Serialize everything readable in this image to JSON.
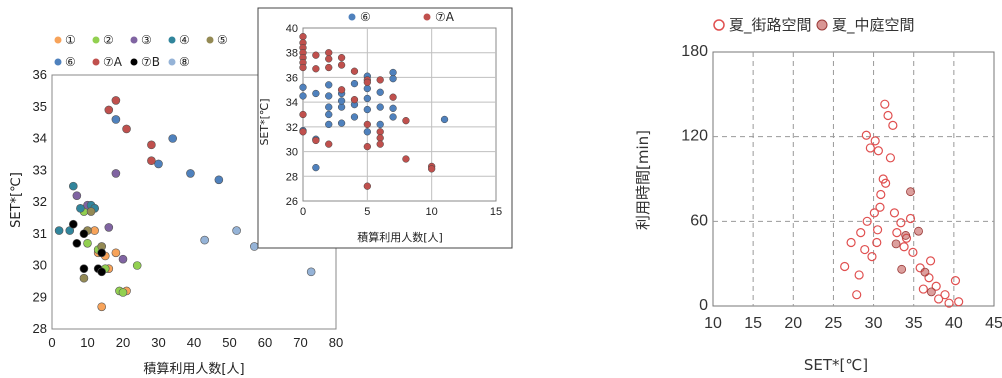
{
  "chart_data": [
    {
      "id": "left",
      "type": "scatter",
      "xlabel": "積算利用人数[人]",
      "ylabel": "SET*[℃]",
      "xlim": [
        0,
        80
      ],
      "ylim": [
        28,
        36
      ],
      "xticks": [
        0,
        10,
        20,
        30,
        40,
        50,
        60,
        70,
        80
      ],
      "yticks": [
        28,
        29,
        30,
        31,
        32,
        33,
        34,
        35,
        36
      ],
      "grid": false,
      "legend": "top-left",
      "series": [
        {
          "name": "①",
          "color": "#f7a35a",
          "points": [
            [
              13,
              30.4
            ],
            [
              15,
              30.3
            ],
            [
              18,
              30.4
            ],
            [
              21,
              29.2
            ],
            [
              14,
              28.7
            ],
            [
              16,
              29.9
            ],
            [
              12,
              31.1
            ]
          ]
        },
        {
          "name": "②",
          "color": "#92d050",
          "points": [
            [
              10,
              30.7
            ],
            [
              15,
              29.9
            ],
            [
              19,
              29.2
            ],
            [
              20,
              29.15
            ],
            [
              24,
              30.0
            ],
            [
              9,
              31.7
            ],
            [
              13,
              30.5
            ]
          ]
        },
        {
          "name": "③",
          "color": "#8064a2",
          "points": [
            [
              7,
              32.2
            ],
            [
              10,
              31.9
            ],
            [
              12,
              31.8
            ],
            [
              16,
              31.2
            ],
            [
              18,
              32.9
            ],
            [
              20,
              30.2
            ]
          ]
        },
        {
          "name": "④",
          "color": "#31859c",
          "points": [
            [
              6,
              32.5
            ],
            [
              8,
              31.8
            ],
            [
              11,
              31.9
            ],
            [
              12,
              31.8
            ],
            [
              5,
              31.1
            ],
            [
              2,
              31.1
            ]
          ]
        },
        {
          "name": "⑤",
          "color": "#948a54",
          "points": [
            [
              10,
              31.1
            ],
            [
              14,
              30.6
            ],
            [
              9,
              29.6
            ],
            [
              11,
              31.7
            ]
          ]
        },
        {
          "name": "⑥",
          "color": "#4f81bd",
          "points": [
            [
              18,
              34.6
            ],
            [
              30,
              33.2
            ],
            [
              34,
              34.0
            ],
            [
              39,
              32.9
            ],
            [
              47,
              32.7
            ]
          ]
        },
        {
          "name": "⑦A",
          "color": "#c0504d",
          "points": [
            [
              16,
              34.9
            ],
            [
              18,
              35.2
            ],
            [
              21,
              34.3
            ],
            [
              28,
              33.8
            ],
            [
              28,
              33.3
            ]
          ]
        },
        {
          "name": "⑦B",
          "color": "#000000",
          "points": [
            [
              6,
              31.3
            ],
            [
              7,
              30.7
            ],
            [
              9,
              29.9
            ],
            [
              9,
              31.0
            ],
            [
              13,
              29.9
            ],
            [
              14,
              30.4
            ],
            [
              14,
              29.8
            ]
          ]
        },
        {
          "name": "⑧",
          "color": "#95b3d7",
          "points": [
            [
              43,
              30.8
            ],
            [
              52,
              31.1
            ],
            [
              57,
              30.6
            ],
            [
              73,
              29.8
            ]
          ]
        }
      ]
    },
    {
      "id": "inset",
      "type": "scatter",
      "xlabel": "積算利用人数[人]",
      "ylabel": "SET*[℃]",
      "xlim": [
        0,
        15
      ],
      "ylim": [
        26,
        40
      ],
      "xticks": [
        0,
        5,
        10,
        15
      ],
      "yticks": [
        26,
        28,
        30,
        32,
        34,
        36,
        38,
        40
      ],
      "grid": true,
      "legend": "top",
      "series": [
        {
          "name": "⑥",
          "color": "#4f81bd",
          "points": [
            [
              0,
              31.7
            ],
            [
              0,
              34.5
            ],
            [
              0,
              35.2
            ],
            [
              1,
              28.7
            ],
            [
              1,
              31
            ],
            [
              1,
              34.7
            ],
            [
              2,
              32.2
            ],
            [
              2,
              33
            ],
            [
              2,
              33.6
            ],
            [
              2,
              34.5
            ],
            [
              2,
              35.4
            ],
            [
              3,
              33.6
            ],
            [
              3,
              34.1
            ],
            [
              3,
              32.3
            ],
            [
              3,
              34.7
            ],
            [
              4,
              32.8
            ],
            [
              4,
              33.8
            ],
            [
              4,
              35.5
            ],
            [
              5,
              31.6
            ],
            [
              5,
              33.4
            ],
            [
              5,
              34.3
            ],
            [
              5,
              35.1
            ],
            [
              5,
              36.1
            ],
            [
              6,
              32.2
            ],
            [
              6,
              33.6
            ],
            [
              6,
              34.8
            ],
            [
              7,
              32.8
            ],
            [
              7,
              33.5
            ],
            [
              7,
              35.9
            ],
            [
              7,
              36.4
            ],
            [
              11,
              32.6
            ]
          ]
        },
        {
          "name": "⑦A",
          "color": "#c0504d",
          "points": [
            [
              0,
              39.3
            ],
            [
              0,
              38.8
            ],
            [
              0,
              38.4
            ],
            [
              0,
              38
            ],
            [
              0,
              37.6
            ],
            [
              0,
              37.2
            ],
            [
              0,
              36.8
            ],
            [
              0,
              33
            ],
            [
              0,
              31.6
            ],
            [
              1,
              37.8
            ],
            [
              1,
              36.7
            ],
            [
              1,
              30.9
            ],
            [
              2,
              38
            ],
            [
              2,
              37.5
            ],
            [
              2,
              36.8
            ],
            [
              2,
              30.6
            ],
            [
              3,
              37.6
            ],
            [
              3,
              37
            ],
            [
              3,
              35
            ],
            [
              4,
              36.5
            ],
            [
              4,
              34.2
            ],
            [
              5,
              35.8
            ],
            [
              5,
              35.6
            ],
            [
              5,
              32.2
            ],
            [
              5,
              30.4
            ],
            [
              5,
              27.2
            ],
            [
              6,
              35.8
            ],
            [
              6,
              31.6
            ],
            [
              6,
              31.1
            ],
            [
              6,
              30.6
            ],
            [
              7,
              34.4
            ],
            [
              8,
              32.5
            ],
            [
              8,
              29.4
            ],
            [
              10,
              28.8
            ],
            [
              10,
              28.6
            ]
          ]
        }
      ]
    },
    {
      "id": "right",
      "type": "scatter",
      "xlabel": "SET*[℃]",
      "ylabel": "利用時間[min]",
      "xlim": [
        10,
        45
      ],
      "ylim": [
        0,
        180
      ],
      "xticks": [
        10,
        15,
        20,
        25,
        30,
        35,
        40,
        45
      ],
      "yticks": [
        0,
        60,
        120,
        180
      ],
      "grid": true,
      "legend": "top",
      "series": [
        {
          "name": "夏_街路空間",
          "color": "#e05050",
          "style": "open",
          "points": [
            [
              29.1,
              121
            ],
            [
              30.2,
              117
            ],
            [
              29.6,
              112
            ],
            [
              30.6,
              110
            ],
            [
              31.8,
              135
            ],
            [
              32.4,
              128
            ],
            [
              31.4,
              143
            ],
            [
              32.1,
              105
            ],
            [
              26.4,
              28
            ],
            [
              27.2,
              45
            ],
            [
              27.9,
              8
            ],
            [
              28.4,
              52
            ],
            [
              29.2,
              60
            ],
            [
              30.1,
              66
            ],
            [
              30.9,
              79
            ],
            [
              31.5,
              87
            ],
            [
              32.6,
              66
            ],
            [
              33.4,
              59
            ],
            [
              34.1,
              48
            ],
            [
              34.9,
              38
            ],
            [
              35.8,
              27
            ],
            [
              36.9,
              20
            ],
            [
              37.8,
              14
            ],
            [
              38.9,
              8
            ],
            [
              40.2,
              18
            ],
            [
              40.6,
              3
            ],
            [
              39.4,
              2
            ],
            [
              38.1,
              5
            ],
            [
              28.9,
              40
            ],
            [
              30.4,
              45
            ],
            [
              32.9,
              52
            ],
            [
              31.2,
              90
            ],
            [
              30.5,
              54
            ],
            [
              29.8,
              35
            ],
            [
              33.8,
              42
            ],
            [
              36.2,
              12
            ],
            [
              37.1,
              32
            ],
            [
              34.6,
              62
            ],
            [
              30.8,
              70
            ],
            [
              28.2,
              22
            ]
          ]
        },
        {
          "name": "夏_中庭空間",
          "color": "#c0504d",
          "style": "filled",
          "points": [
            [
              34.6,
              81
            ],
            [
              35.6,
              53
            ],
            [
              34.0,
              50
            ],
            [
              32.8,
              44
            ],
            [
              33.5,
              26
            ],
            [
              36.4,
              24
            ],
            [
              37.2,
              10
            ]
          ]
        }
      ]
    }
  ]
}
